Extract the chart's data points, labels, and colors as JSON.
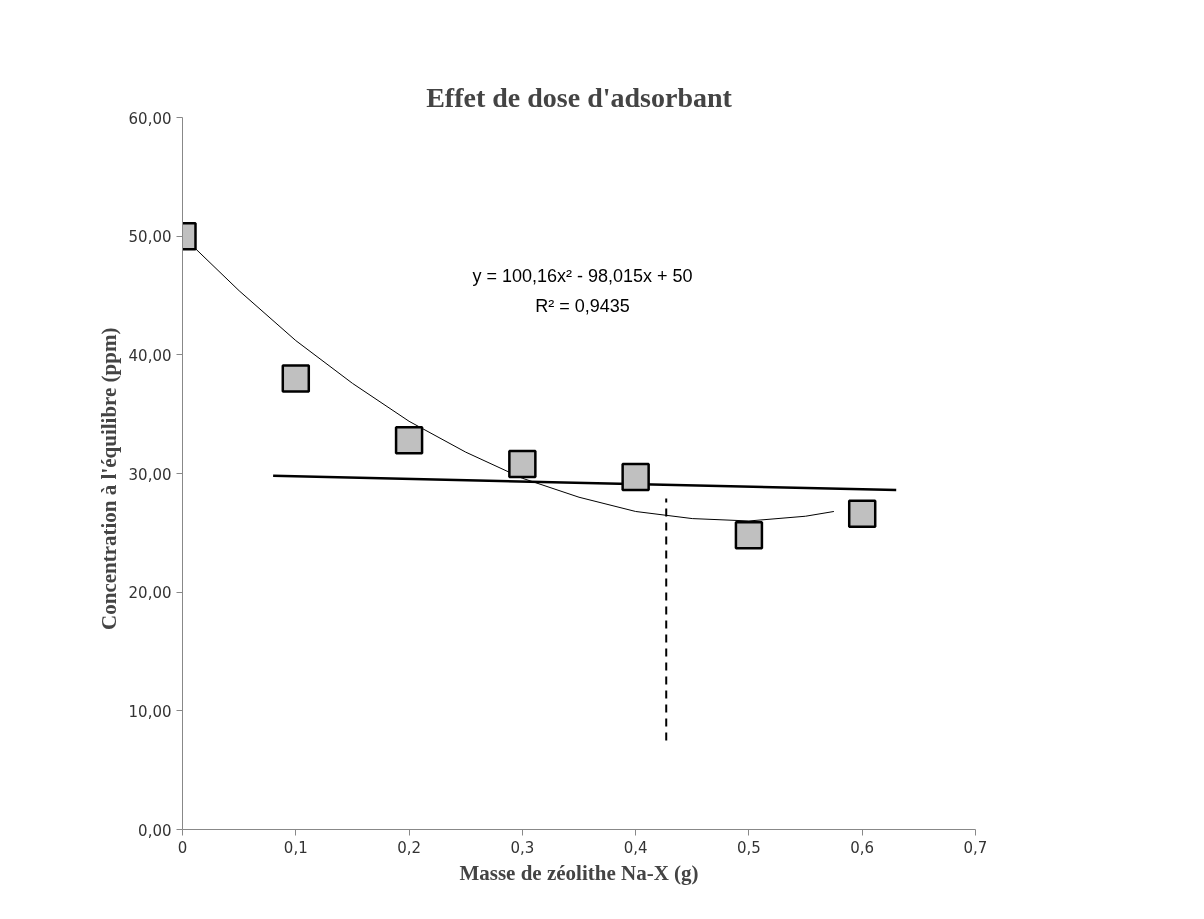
{
  "chart_data": {
    "type": "scatter",
    "title": "Effet de dose d'adsorbant",
    "xlabel": "Masse de zéolithe Na-X (g)",
    "ylabel": "Concentration  à  l'équilibre (ppm)",
    "xlim": [
      0,
      0.7
    ],
    "ylim": [
      0,
      60
    ],
    "xticks": [
      0,
      {
        "value": 0.1,
        "label": "0,1"
      },
      {
        "value": 0.2,
        "label": "0,2"
      },
      {
        "value": 0.3,
        "label": "0,3"
      },
      {
        "value": 0.4,
        "label": "0,4"
      },
      {
        "value": 0.5,
        "label": "0,5"
      },
      {
        "value": 0.6,
        "label": "0,6"
      },
      {
        "value": 0.7,
        "label": "0,7"
      }
    ],
    "yticks": [
      {
        "value": 0,
        "label": "0,00"
      },
      {
        "value": 10,
        "label": "10,00"
      },
      {
        "value": 20,
        "label": "20,00"
      },
      {
        "value": 30,
        "label": "30,00"
      },
      {
        "value": 40,
        "label": "40,00"
      },
      {
        "value": 50,
        "label": "50,00"
      },
      {
        "value": 60,
        "label": "60,00"
      }
    ],
    "grid": false,
    "series": [
      {
        "type": "line",
        "color": "#000000",
        "marker": "none",
        "line_style": "solid",
        "x": [
          0,
          0.05,
          0.1,
          0.15,
          0.2,
          0.25,
          0.3,
          0.35,
          0.4,
          0.45,
          0.5,
          0.55,
          0.575
        ],
        "values": [
          50,
          45.4,
          41.2,
          37.6,
          34.4,
          31.8,
          29.6,
          28,
          26.8,
          26.2,
          26,
          26.4,
          26.8
        ]
      },
      {
        "type": "line",
        "color": "#000000",
        "marker": "none",
        "line_style": "solid",
        "x": [
          0.08,
          0.63
        ],
        "values": [
          29.8,
          28.6
        ]
      },
      {
        "type": "line",
        "color": "#000000",
        "marker": "none",
        "line_style": "dashed",
        "x": [
          0.427,
          0.427
        ],
        "values": [
          7.5,
          27.9
        ]
      },
      {
        "color": "#c0c0c0",
        "marker": "square",
        "x": [
          0,
          0.1,
          0.2,
          0.3,
          0.4,
          0.5,
          0.6
        ],
        "values": [
          50,
          38,
          32.8,
          30.8,
          29.7,
          24.8,
          26.6
        ]
      }
    ],
    "annotations": [
      "y = 100,16x² - 98,015x + 50",
      "R² = 0,9435"
    ]
  }
}
